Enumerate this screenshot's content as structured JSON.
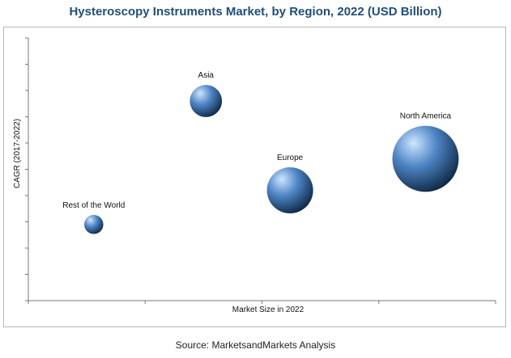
{
  "title": "Hysteroscopy Instruments Market, by Region, 2022 (USD Billion)",
  "source": "Source: MarketsandMarkets Analysis",
  "colors": {
    "title": "#1f4e79",
    "bubble_highlight": "#cfe6ff",
    "bubble_mid": "#4f86c6",
    "bubble_dark": "#0e2744",
    "axis": "#777777"
  },
  "chart_data": {
    "type": "scatter",
    "title": "Hysteroscopy Instruments Market, by Region, 2022 (USD Billion)",
    "xlabel": "Market Size in 2022",
    "ylabel": "CAGR (2017-2022)",
    "xlim": [
      0,
      10
    ],
    "ylim": [
      0,
      10
    ],
    "x_ticks": 4,
    "y_ticks": 10,
    "grid": false,
    "points": [
      {
        "label": "Asia",
        "x": 3.8,
        "y": 7.6,
        "size": 3.2
      },
      {
        "label": "North America",
        "x": 8.5,
        "y": 5.4,
        "size": 6.6
      },
      {
        "label": "Europe",
        "x": 5.6,
        "y": 4.2,
        "size": 4.6
      },
      {
        "label": "Rest of the World",
        "x": 1.4,
        "y": 2.9,
        "size": 1.9
      }
    ]
  }
}
